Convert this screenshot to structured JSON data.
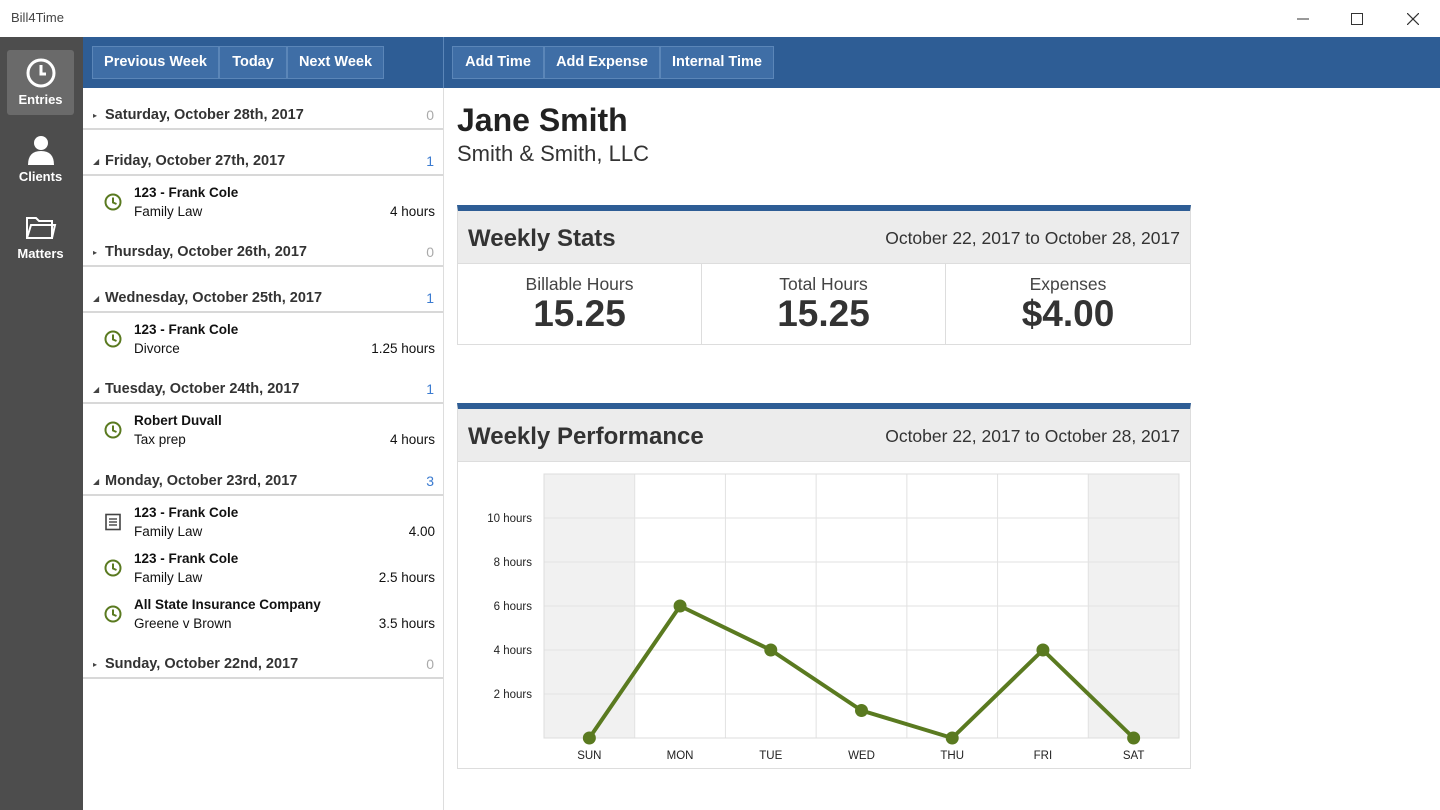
{
  "app": {
    "title": "Bill4Time"
  },
  "window_controls": {
    "minimize": "minimize-icon",
    "maximize": "maximize-icon",
    "close": "close-icon"
  },
  "rail": {
    "items": [
      {
        "label": "Entries",
        "icon": "clock-icon",
        "active": true
      },
      {
        "label": "Clients",
        "icon": "person-icon",
        "active": false
      },
      {
        "label": "Matters",
        "icon": "folder-icon",
        "active": false
      }
    ]
  },
  "toolbar": {
    "previous_week": "Previous Week",
    "today": "Today",
    "next_week": "Next Week",
    "add_time": "Add Time",
    "add_expense": "Add Expense",
    "internal_time": "Internal Time"
  },
  "days": [
    {
      "label": "Saturday, October 28th, 2017",
      "count": "0",
      "expanded": false,
      "entries": []
    },
    {
      "label": "Friday, October 27th, 2017",
      "count": "1",
      "expanded": true,
      "entries": [
        {
          "icon": "clock-icon",
          "client": "123 - Frank Cole",
          "matter": "Family Law",
          "amount": "4 hours"
        }
      ]
    },
    {
      "label": "Thursday, October 26th, 2017",
      "count": "0",
      "expanded": false,
      "entries": []
    },
    {
      "label": "Wednesday, October 25th, 2017",
      "count": "1",
      "expanded": true,
      "entries": [
        {
          "icon": "clock-icon",
          "client": "123 - Frank Cole",
          "matter": "Divorce",
          "amount": "1.25 hours"
        }
      ]
    },
    {
      "label": "Tuesday, October 24th, 2017",
      "count": "1",
      "expanded": true,
      "entries": [
        {
          "icon": "clock-icon",
          "client": "Robert Duvall",
          "matter": "Tax prep",
          "amount": "4 hours"
        }
      ]
    },
    {
      "label": "Monday, October 23rd, 2017",
      "count": "3",
      "expanded": true,
      "entries": [
        {
          "icon": "receipt-icon",
          "client": "123 - Frank Cole",
          "matter": "Family Law",
          "amount": "4.00"
        },
        {
          "icon": "clock-icon",
          "client": "123 - Frank Cole",
          "matter": "Family Law",
          "amount": "2.5 hours"
        },
        {
          "icon": "clock-icon",
          "client": "All State Insurance Company",
          "matter": "Greene v Brown",
          "amount": "3.5 hours"
        }
      ]
    },
    {
      "label": "Sunday, October 22nd, 2017",
      "count": "0",
      "expanded": false,
      "entries": []
    }
  ],
  "person": {
    "name": "Jane Smith",
    "firm": "Smith & Smith, LLC"
  },
  "weekly_stats": {
    "title": "Weekly Stats",
    "range": "October 22, 2017 to October 28, 2017",
    "billable_label": "Billable Hours",
    "billable_value": "15.25",
    "total_label": "Total Hours",
    "total_value": "15.25",
    "expenses_label": "Expenses",
    "expenses_value": "$4.00"
  },
  "weekly_performance": {
    "title": "Weekly Performance",
    "range": "October 22, 2017 to October 28, 2017"
  },
  "colors": {
    "brand": "#2e5d95",
    "line": "#5a7a20",
    "count_blue": "#3b7bd0"
  },
  "chart_data": {
    "type": "line",
    "categories": [
      "SUN",
      "MON",
      "TUE",
      "WED",
      "THU",
      "FRI",
      "SAT"
    ],
    "series": [
      {
        "values": [
          0,
          6,
          4,
          1.25,
          0,
          4,
          0
        ]
      }
    ],
    "ylim": [
      0,
      12
    ],
    "yticks": [
      2,
      4,
      6,
      8,
      10
    ],
    "ytick_labels": [
      "2 hours",
      "4 hours",
      "6 hours",
      "8 hours",
      "10 hours"
    ],
    "weekend_shaded": true,
    "grid": true
  }
}
